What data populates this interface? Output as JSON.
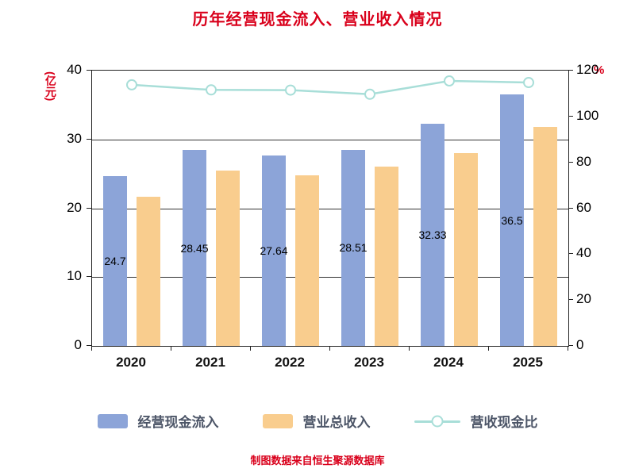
{
  "chart_data": {
    "type": "bar",
    "title": "历年经营现金流入、营业收入情况",
    "categories": [
      "2020",
      "2021",
      "2022",
      "2023",
      "2024",
      "2025"
    ],
    "series": [
      {
        "name": "经营现金流入",
        "type": "bar",
        "axis": "left",
        "color": "#8ca4d8",
        "values": [
          24.7,
          28.45,
          27.64,
          28.51,
          32.33,
          36.5
        ],
        "show_labels": true
      },
      {
        "name": "营业总收入",
        "type": "bar",
        "axis": "left",
        "color": "#f9cd8e",
        "values": [
          21.7,
          25.5,
          24.8,
          26.0,
          28.0,
          31.8
        ],
        "show_labels": false
      },
      {
        "name": "营收现金比",
        "type": "line",
        "axis": "right",
        "color": "#a8ded8",
        "marker_fill": "#ffffff",
        "values": [
          113.8,
          111.6,
          111.5,
          109.7,
          115.5,
          114.8
        ]
      }
    ],
    "left_axis": {
      "label": "(亿元)",
      "min": 0,
      "max": 40,
      "step": 10
    },
    "right_axis": {
      "label": "%",
      "min": 0,
      "max": 120,
      "step": 20
    },
    "grid": true,
    "legend_position": "bottom",
    "accent_red": "#d9001b",
    "source_note": "制图数据来自恒生聚源数据库"
  }
}
